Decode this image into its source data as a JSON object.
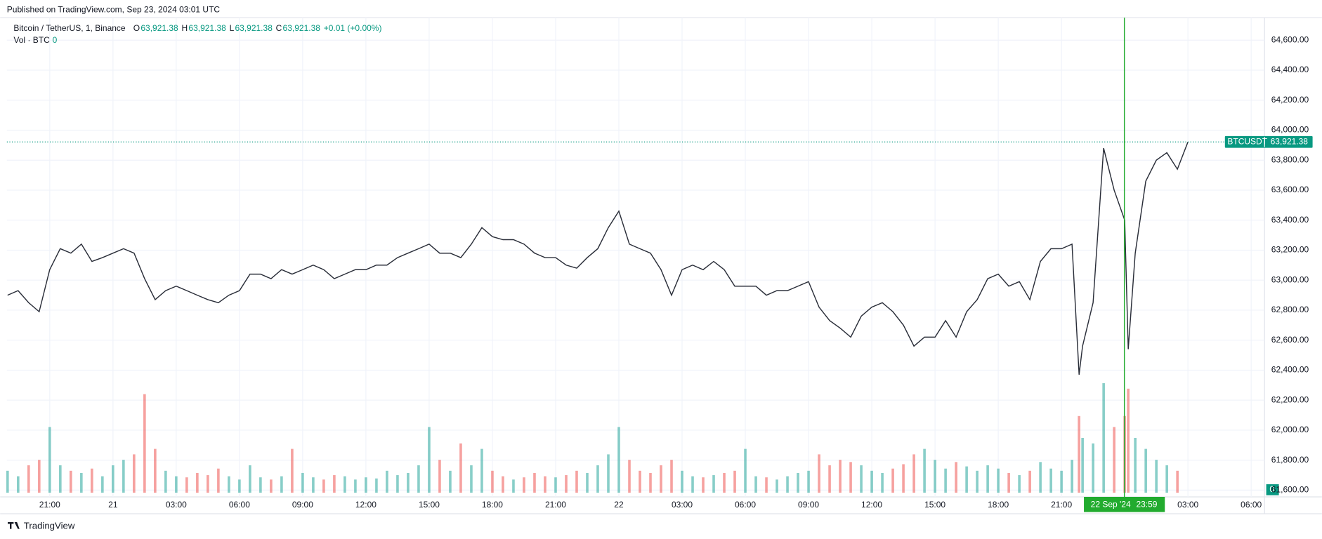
{
  "header": {
    "published": "Published on TradingView.com, Sep 23, 2024 03:01 UTC",
    "brand": "TradingView"
  },
  "chart_data": {
    "type": "line",
    "title": "Bitcoin / TetherUS, 1, Binance",
    "ohlc": {
      "labels": [
        "O",
        "H",
        "L",
        "C"
      ],
      "values": [
        63921.38,
        63921.38,
        63921.38,
        63921.38
      ],
      "value_labels": [
        "63,921.38",
        "63,921.38",
        "63,921.38",
        "63,921.38"
      ]
    },
    "change_label": "+0.01 (+0.00%)",
    "x": [
      "2024-09-20T19:00",
      "2024-09-20T19:30",
      "2024-09-20T20:00",
      "2024-09-20T20:30",
      "2024-09-20T21:00",
      "2024-09-20T21:30",
      "2024-09-20T22:00",
      "2024-09-20T22:30",
      "2024-09-20T23:00",
      "2024-09-20T23:30",
      "2024-09-21T00:00",
      "2024-09-21T00:30",
      "2024-09-21T01:00",
      "2024-09-21T01:30",
      "2024-09-21T02:00",
      "2024-09-21T02:30",
      "2024-09-21T03:00",
      "2024-09-21T03:30",
      "2024-09-21T04:00",
      "2024-09-21T04:30",
      "2024-09-21T05:00",
      "2024-09-21T05:30",
      "2024-09-21T06:00",
      "2024-09-21T06:30",
      "2024-09-21T07:00",
      "2024-09-21T07:30",
      "2024-09-21T08:00",
      "2024-09-21T08:30",
      "2024-09-21T09:00",
      "2024-09-21T09:30",
      "2024-09-21T10:00",
      "2024-09-21T10:30",
      "2024-09-21T11:00",
      "2024-09-21T11:30",
      "2024-09-21T12:00",
      "2024-09-21T12:30",
      "2024-09-21T13:00",
      "2024-09-21T13:30",
      "2024-09-21T14:00",
      "2024-09-21T14:30",
      "2024-09-21T15:00",
      "2024-09-21T15:30",
      "2024-09-21T16:00",
      "2024-09-21T16:30",
      "2024-09-21T17:00",
      "2024-09-21T17:30",
      "2024-09-21T18:00",
      "2024-09-21T18:30",
      "2024-09-21T19:00",
      "2024-09-21T19:30",
      "2024-09-21T20:00",
      "2024-09-21T20:30",
      "2024-09-21T21:00",
      "2024-09-21T21:30",
      "2024-09-21T22:00",
      "2024-09-21T22:30",
      "2024-09-21T23:00",
      "2024-09-21T23:30",
      "2024-09-22T00:00",
      "2024-09-22T00:30",
      "2024-09-22T01:00",
      "2024-09-22T01:30",
      "2024-09-22T02:00",
      "2024-09-22T02:30",
      "2024-09-22T03:00",
      "2024-09-22T03:30",
      "2024-09-22T04:00",
      "2024-09-22T04:30",
      "2024-09-22T05:00",
      "2024-09-22T05:30",
      "2024-09-22T06:00",
      "2024-09-22T06:30",
      "2024-09-22T07:00",
      "2024-09-22T07:30",
      "2024-09-22T08:00",
      "2024-09-22T08:30",
      "2024-09-22T09:00",
      "2024-09-22T09:30",
      "2024-09-22T10:00",
      "2024-09-22T10:30",
      "2024-09-22T11:00",
      "2024-09-22T11:30",
      "2024-09-22T12:00",
      "2024-09-22T12:30",
      "2024-09-22T13:00",
      "2024-09-22T13:30",
      "2024-09-22T14:00",
      "2024-09-22T14:30",
      "2024-09-22T15:00",
      "2024-09-22T15:30",
      "2024-09-22T16:00",
      "2024-09-22T16:30",
      "2024-09-22T17:00",
      "2024-09-22T17:30",
      "2024-09-22T18:00",
      "2024-09-22T18:30",
      "2024-09-22T19:00",
      "2024-09-22T19:30",
      "2024-09-22T20:00",
      "2024-09-22T20:30",
      "2024-09-22T21:00",
      "2024-09-22T21:30",
      "2024-09-22T21:50",
      "2024-09-22T22:00",
      "2024-09-22T22:30",
      "2024-09-22T23:00",
      "2024-09-22T23:30",
      "2024-09-23T00:00",
      "2024-09-23T00:10",
      "2024-09-23T00:30",
      "2024-09-23T01:00",
      "2024-09-23T01:30",
      "2024-09-23T02:00",
      "2024-09-23T02:30",
      "2024-09-23T03:00"
    ],
    "series": [
      {
        "name": "BTCUSDT",
        "color": "#2a2e39",
        "values": [
          62900,
          62930,
          62850,
          62790,
          63070,
          63210,
          63180,
          63240,
          63125,
          63150,
          63180,
          63210,
          63180,
          63010,
          62870,
          62930,
          62960,
          62930,
          62900,
          62870,
          62850,
          62900,
          62930,
          63040,
          63040,
          63010,
          63070,
          63040,
          63070,
          63100,
          63070,
          63010,
          63040,
          63070,
          63070,
          63100,
          63100,
          63150,
          63180,
          63210,
          63240,
          63180,
          63180,
          63150,
          63240,
          63350,
          63290,
          63270,
          63270,
          63240,
          63180,
          63150,
          63150,
          63100,
          63080,
          63150,
          63210,
          63350,
          63460,
          63240,
          63210,
          63180,
          63070,
          62900,
          63070,
          63100,
          63070,
          63125,
          63070,
          62960,
          62960,
          62960,
          62900,
          62930,
          62930,
          62960,
          62990,
          62820,
          62730,
          62680,
          62620,
          62760,
          62820,
          62850,
          62790,
          62700,
          62560,
          62620,
          62620,
          62730,
          62620,
          62790,
          62870,
          63010,
          63040,
          62960,
          62990,
          62870,
          63125,
          63210,
          63210,
          63240,
          62370,
          62560,
          62850,
          63880,
          63600,
          63400,
          62540,
          63180,
          63660,
          63800,
          63850,
          63740,
          63921.38
        ]
      }
    ],
    "volume": {
      "name": "Vol · BTC",
      "current": 0,
      "up_color": "#26a69a",
      "down_color": "#ef5350",
      "values": [
        20,
        15,
        25,
        30,
        60,
        25,
        20,
        18,
        22,
        15,
        25,
        30,
        35,
        90,
        40,
        20,
        15,
        14,
        18,
        16,
        22,
        15,
        12,
        25,
        14,
        12,
        15,
        40,
        18,
        14,
        12,
        16,
        15,
        12,
        14,
        13,
        20,
        16,
        18,
        25,
        60,
        30,
        20,
        45,
        25,
        40,
        20,
        15,
        12,
        14,
        18,
        15,
        14,
        16,
        20,
        18,
        25,
        35,
        60,
        30,
        20,
        18,
        25,
        30,
        20,
        15,
        14,
        16,
        18,
        20,
        40,
        15,
        14,
        12,
        15,
        18,
        20,
        35,
        25,
        30,
        28,
        25,
        20,
        18,
        22,
        26,
        35,
        40,
        30,
        22,
        28,
        24,
        20,
        25,
        22,
        18,
        16,
        20,
        28,
        22,
        20,
        30,
        70,
        50,
        45,
        100,
        60,
        70,
        95,
        50,
        40,
        30,
        25,
        20,
        0
      ]
    },
    "ylim": [
      61555,
      64750
    ],
    "yticks": [
      {
        "value": 61600,
        "label": "61,600.00"
      },
      {
        "value": 61800,
        "label": "61,800.00"
      },
      {
        "value": 62000,
        "label": "62,000.00"
      },
      {
        "value": 62200,
        "label": "62,200.00"
      },
      {
        "value": 62400,
        "label": "62,400.00"
      },
      {
        "value": 62600,
        "label": "62,600.00"
      },
      {
        "value": 62800,
        "label": "62,800.00"
      },
      {
        "value": 63000,
        "label": "63,000.00"
      },
      {
        "value": 63200,
        "label": "63,200.00"
      },
      {
        "value": 63400,
        "label": "63,400.00"
      },
      {
        "value": 63600,
        "label": "63,600.00"
      },
      {
        "value": 63800,
        "label": "63,800.00"
      },
      {
        "value": 64000,
        "label": "64,000.00"
      },
      {
        "value": 64200,
        "label": "64,200.00"
      },
      {
        "value": 64400,
        "label": "64,400.00"
      },
      {
        "value": 64600,
        "label": "64,600.00"
      }
    ],
    "xlim": [
      "2024-09-20T18:58",
      "2024-09-23T06:38"
    ],
    "xticks": [
      {
        "value": "2024-09-20T21:00",
        "label": "21:00"
      },
      {
        "value": "2024-09-21T00:00",
        "label": "21"
      },
      {
        "value": "2024-09-21T03:00",
        "label": "03:00"
      },
      {
        "value": "2024-09-21T06:00",
        "label": "06:00"
      },
      {
        "value": "2024-09-21T09:00",
        "label": "09:00"
      },
      {
        "value": "2024-09-21T12:00",
        "label": "12:00"
      },
      {
        "value": "2024-09-21T15:00",
        "label": "15:00"
      },
      {
        "value": "2024-09-21T18:00",
        "label": "18:00"
      },
      {
        "value": "2024-09-21T21:00",
        "label": "21:00"
      },
      {
        "value": "2024-09-22T00:00",
        "label": "22"
      },
      {
        "value": "2024-09-22T03:00",
        "label": "03:00"
      },
      {
        "value": "2024-09-22T06:00",
        "label": "06:00"
      },
      {
        "value": "2024-09-22T09:00",
        "label": "09:00"
      },
      {
        "value": "2024-09-22T12:00",
        "label": "12:00"
      },
      {
        "value": "2024-09-22T15:00",
        "label": "15:00"
      },
      {
        "value": "2024-09-22T18:00",
        "label": "18:00"
      },
      {
        "value": "2024-09-22T21:00",
        "label": "21:00"
      },
      {
        "value": "2024-09-23T03:00",
        "label": "03:00"
      },
      {
        "value": "2024-09-23T06:00",
        "label": "06:00"
      }
    ],
    "grid": true,
    "price_color": "#089981",
    "crosshair": {
      "x": "2024-09-22T23:59",
      "date_label": "22 Sep '24",
      "time_label": "23:59",
      "color": "#22ab2e"
    }
  }
}
